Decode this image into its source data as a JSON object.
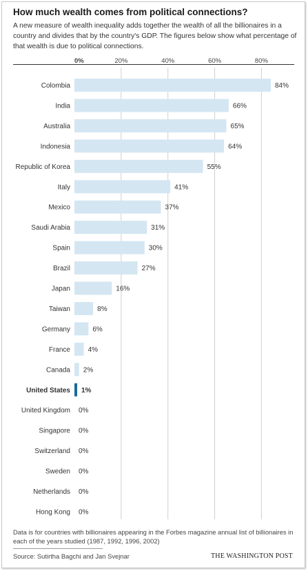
{
  "header": {
    "title": "How much wealth comes from political connections?",
    "subtitle": "A new measure of wealth inequality adds together the wealth of all the billionaires in a country and divides that by the country's GDP. The figures below show what percentage of that wealth is due to political connections."
  },
  "chart_data": {
    "type": "bar",
    "orientation": "horizontal",
    "categories": [
      "Colombia",
      "India",
      "Australia",
      "Indonesia",
      "Republic of Korea",
      "Italy",
      "Mexico",
      "Saudi Arabia",
      "Spain",
      "Brazil",
      "Japan",
      "Taiwan",
      "Germany",
      "France",
      "Canada",
      "United States",
      "United Kingdom",
      "Singapore",
      "Switzerland",
      "Sweden",
      "Netherlands",
      "Hong Kong"
    ],
    "values": [
      84,
      66,
      65,
      64,
      55,
      41,
      37,
      31,
      30,
      27,
      16,
      8,
      6,
      4,
      2,
      1,
      0,
      0,
      0,
      0,
      0,
      0
    ],
    "value_labels": [
      "84%",
      "66%",
      "65%",
      "64%",
      "55%",
      "41%",
      "37%",
      "31%",
      "30%",
      "27%",
      "16%",
      "8%",
      "6%",
      "4%",
      "2%",
      "1%",
      "0%",
      "0%",
      "0%",
      "0%",
      "0%",
      "0%"
    ],
    "highlight": "United States",
    "xlim": [
      0,
      84
    ],
    "x_ticks": [
      0,
      20,
      40,
      60,
      80
    ],
    "x_tick_labels": [
      "0%",
      "20%",
      "40%",
      "60%",
      "80%"
    ],
    "grid": true,
    "colors": {
      "bar": "#d4e6f2",
      "highlight_bar": "#1c6a96",
      "grid": "#cfcfcf",
      "text": "#333333"
    }
  },
  "footer": {
    "note": "Data is for countries with billionaires appearing in the Forbes magazine annual list of billionaires in each of the years studied (1987, 1992, 1996, 2002)",
    "source": "Source: Sutirtha Bagchi and Jan Svejnar",
    "brand": "THE WASHINGTON POST"
  }
}
